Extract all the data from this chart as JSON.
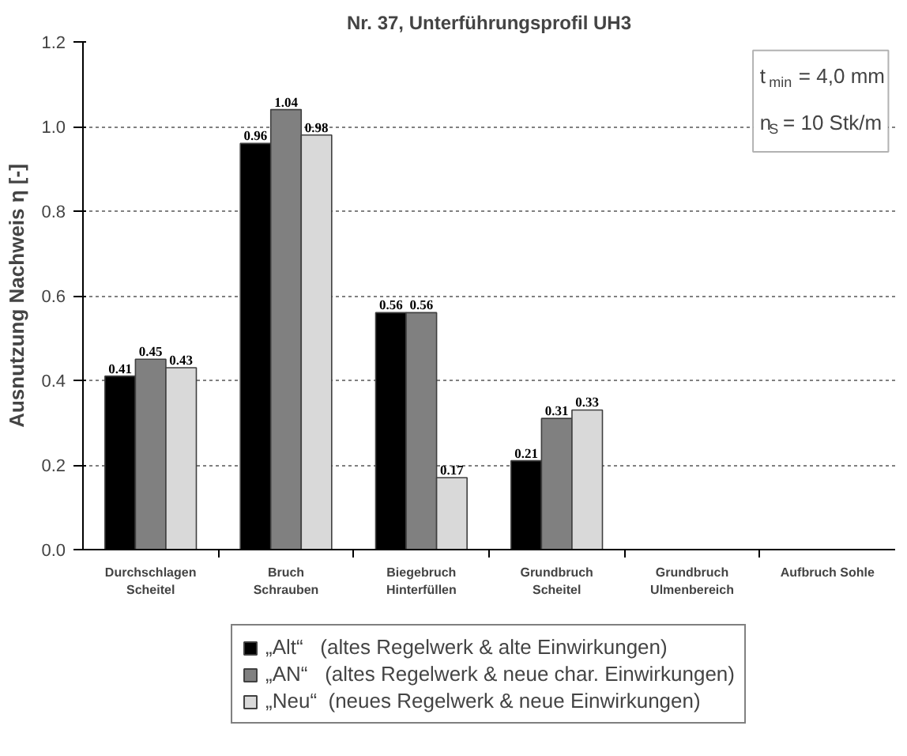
{
  "chart_data": {
    "type": "bar",
    "title": "Nr. 37, Unterführungsprofil UH3",
    "ylabel": "Ausnutzung Nachweis η [-]",
    "categories": [
      "Durchschlagen\nScheitel",
      "Bruch\nSchrauben",
      "Biegebruch\nHinterfüllen",
      "Grundbruch\nScheitel",
      "Grundbruch\nUlmenbereich",
      "Aufbruch Sohle"
    ],
    "series": [
      {
        "name": "„Alt“   (altes Regelwerk & alte Einwirkungen)",
        "color": "#000000",
        "values": [
          0.41,
          0.96,
          0.56,
          0.21,
          null,
          null
        ]
      },
      {
        "name": "„AN“   (altes Regelwerk & neue char. Einwirkungen)",
        "color": "#808080",
        "values": [
          0.45,
          1.04,
          0.56,
          0.31,
          null,
          null
        ]
      },
      {
        "name": "„Neu“  (neues Regelwerk & neue Einwirkungen)",
        "color": "#d9d9d9",
        "values": [
          0.43,
          0.98,
          0.17,
          0.33,
          null,
          null
        ]
      }
    ],
    "ylim": [
      0,
      1.2
    ],
    "yticks": [
      {
        "value": 0,
        "label": "0.0"
      },
      0.2,
      0.4,
      0.6,
      0.8,
      {
        "value": 1,
        "label": "1.0"
      },
      1.2
    ],
    "grid": "y",
    "legend": "bottom",
    "data_labels": true,
    "annotations": [
      "t$_{min}$ = 4,0 mm",
      "n$_{S}$ = 10 Stk/m"
    ]
  }
}
